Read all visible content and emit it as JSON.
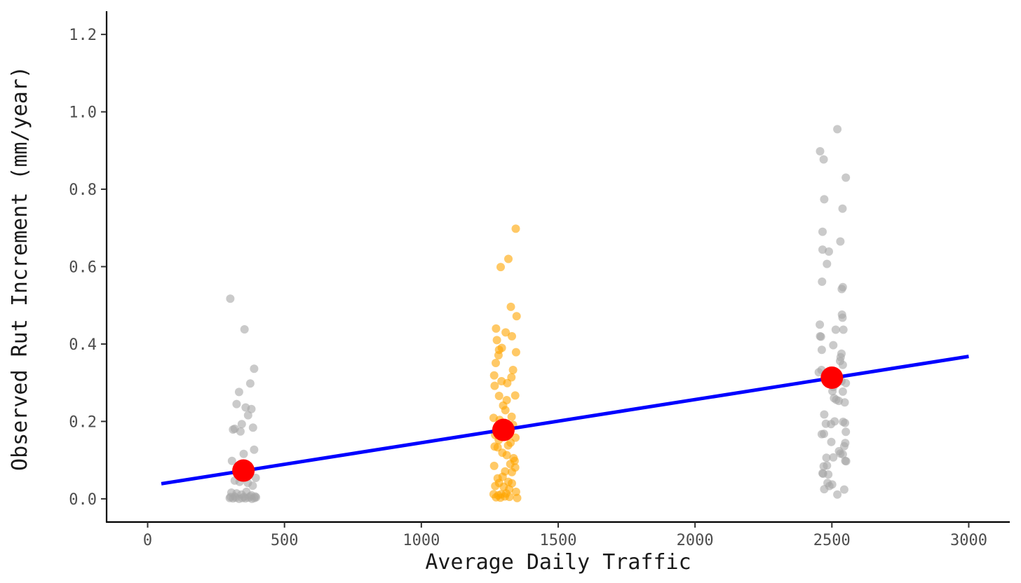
{
  "chart_data": {
    "type": "scatter",
    "xlabel": "Average Daily Traffic",
    "ylabel": "Observed Rut Increment (mm/year)",
    "xlim": [
      -150,
      3150
    ],
    "ylim": [
      -0.06,
      1.26
    ],
    "x_ticks": [
      0,
      500,
      1000,
      1500,
      2000,
      2500,
      3000
    ],
    "x_tick_labels": [
      "0",
      "500",
      "1000",
      "1500",
      "2000",
      "2500",
      "3000"
    ],
    "y_ticks": [
      0.0,
      0.2,
      0.4,
      0.6,
      0.8,
      1.0,
      1.2
    ],
    "y_tick_labels": [
      "0.0",
      "0.2",
      "0.4",
      "0.6",
      "0.8",
      "1.0",
      "1.2"
    ],
    "grid": false,
    "colors": {
      "gray_points": "#a6a6a6",
      "orange_points": "#ffa500",
      "fit_line": "#0000ff",
      "means": "#ff0000"
    },
    "series": [
      {
        "color": "#a6a6a6",
        "points": [
          [
            302,
            0.517
          ],
          [
            354,
            0.438
          ],
          [
            389,
            0.336
          ],
          [
            375,
            0.298
          ],
          [
            334,
            0.276
          ],
          [
            379,
            0.232
          ],
          [
            358,
            0.236
          ],
          [
            325,
            0.245
          ],
          [
            367,
            0.216
          ],
          [
            344,
            0.193
          ],
          [
            318,
            0.181
          ],
          [
            312,
            0.179
          ],
          [
            385,
            0.184
          ],
          [
            339,
            0.174
          ],
          [
            389,
            0.127
          ],
          [
            351,
            0.116
          ],
          [
            308,
            0.098
          ],
          [
            328,
            0.08
          ],
          [
            372,
            0.07
          ],
          [
            395,
            0.054
          ],
          [
            318,
            0.047
          ],
          [
            336,
            0.044
          ],
          [
            366,
            0.041
          ],
          [
            384,
            0.034
          ],
          [
            306,
            0.016
          ],
          [
            325,
            0.014
          ],
          [
            343,
            0.011
          ],
          [
            361,
            0.018
          ],
          [
            379,
            0.009
          ],
          [
            393,
            0.006
          ],
          [
            300,
            0.002
          ],
          [
            312,
            0.001
          ],
          [
            322,
            0.003
          ],
          [
            334,
            0.0
          ],
          [
            346,
            0.002
          ],
          [
            357,
            0.001
          ],
          [
            369,
            0.003
          ],
          [
            381,
            0.0
          ],
          [
            390,
            0.002
          ],
          [
            396,
            0.004
          ],
          [
            303,
            0.005
          ],
          [
            318,
            0.006
          ],
          [
            352,
            0.005
          ],
          [
            374,
            0.006
          ]
        ]
      },
      {
        "color": "#ffa500",
        "points": [
          [
            1345,
            0.698
          ],
          [
            1318,
            0.62
          ],
          [
            1290,
            0.599
          ],
          [
            1327,
            0.496
          ],
          [
            1348,
            0.472
          ],
          [
            1273,
            0.44
          ],
          [
            1308,
            0.43
          ],
          [
            1331,
            0.42
          ],
          [
            1276,
            0.41
          ],
          [
            1294,
            0.39
          ],
          [
            1284,
            0.385
          ],
          [
            1346,
            0.379
          ],
          [
            1282,
            0.371
          ],
          [
            1272,
            0.351
          ],
          [
            1335,
            0.333
          ],
          [
            1266,
            0.319
          ],
          [
            1329,
            0.314
          ],
          [
            1293,
            0.304
          ],
          [
            1314,
            0.299
          ],
          [
            1268,
            0.292
          ],
          [
            1284,
            0.266
          ],
          [
            1343,
            0.267
          ],
          [
            1312,
            0.255
          ],
          [
            1299,
            0.241
          ],
          [
            1307,
            0.229
          ],
          [
            1330,
            0.212
          ],
          [
            1264,
            0.209
          ],
          [
            1286,
            0.204
          ],
          [
            1335,
            0.191
          ],
          [
            1289,
            0.188
          ],
          [
            1270,
            0.165
          ],
          [
            1344,
            0.158
          ],
          [
            1283,
            0.152
          ],
          [
            1326,
            0.145
          ],
          [
            1317,
            0.138
          ],
          [
            1268,
            0.135
          ],
          [
            1279,
            0.133
          ],
          [
            1296,
            0.119
          ],
          [
            1312,
            0.113
          ],
          [
            1337,
            0.105
          ],
          [
            1341,
            0.098
          ],
          [
            1325,
            0.09
          ],
          [
            1266,
            0.085
          ],
          [
            1343,
            0.081
          ],
          [
            1306,
            0.071
          ],
          [
            1331,
            0.069
          ],
          [
            1279,
            0.053
          ],
          [
            1297,
            0.057
          ],
          [
            1318,
            0.044
          ],
          [
            1284,
            0.041
          ],
          [
            1331,
            0.04
          ],
          [
            1270,
            0.033
          ],
          [
            1301,
            0.031
          ],
          [
            1321,
            0.025
          ],
          [
            1346,
            0.018
          ],
          [
            1264,
            0.012
          ],
          [
            1281,
            0.009
          ],
          [
            1292,
            0.012
          ],
          [
            1310,
            0.014
          ],
          [
            1273,
            0.004
          ],
          [
            1289,
            0.003
          ],
          [
            1305,
            0.006
          ],
          [
            1322,
            0.005
          ],
          [
            1350,
            0.002
          ]
        ]
      },
      {
        "color": "#a6a6a6",
        "points": [
          [
            2520,
            0.955
          ],
          [
            2457,
            0.898
          ],
          [
            2470,
            0.877
          ],
          [
            2551,
            0.83
          ],
          [
            2472,
            0.774
          ],
          [
            2539,
            0.75
          ],
          [
            2466,
            0.69
          ],
          [
            2531,
            0.665
          ],
          [
            2466,
            0.644
          ],
          [
            2489,
            0.639
          ],
          [
            2482,
            0.607
          ],
          [
            2464,
            0.561
          ],
          [
            2540,
            0.547
          ],
          [
            2536,
            0.542
          ],
          [
            2537,
            0.476
          ],
          [
            2539,
            0.468
          ],
          [
            2456,
            0.45
          ],
          [
            2514,
            0.437
          ],
          [
            2542,
            0.437
          ],
          [
            2457,
            0.42
          ],
          [
            2460,
            0.419
          ],
          [
            2505,
            0.397
          ],
          [
            2463,
            0.385
          ],
          [
            2535,
            0.375
          ],
          [
            2532,
            0.366
          ],
          [
            2530,
            0.356
          ],
          [
            2540,
            0.346
          ],
          [
            2462,
            0.333
          ],
          [
            2452,
            0.327
          ],
          [
            2495,
            0.321
          ],
          [
            2525,
            0.312
          ],
          [
            2535,
            0.304
          ],
          [
            2551,
            0.299
          ],
          [
            2505,
            0.289
          ],
          [
            2502,
            0.278
          ],
          [
            2540,
            0.277
          ],
          [
            2508,
            0.26
          ],
          [
            2516,
            0.256
          ],
          [
            2525,
            0.253
          ],
          [
            2547,
            0.249
          ],
          [
            2472,
            0.218
          ],
          [
            2510,
            0.2
          ],
          [
            2541,
            0.199
          ],
          [
            2548,
            0.196
          ],
          [
            2478,
            0.194
          ],
          [
            2497,
            0.193
          ],
          [
            2551,
            0.173
          ],
          [
            2471,
            0.168
          ],
          [
            2463,
            0.167
          ],
          [
            2498,
            0.147
          ],
          [
            2549,
            0.144
          ],
          [
            2545,
            0.136
          ],
          [
            2526,
            0.123
          ],
          [
            2531,
            0.117
          ],
          [
            2540,
            0.115
          ],
          [
            2505,
            0.107
          ],
          [
            2480,
            0.106
          ],
          [
            2549,
            0.098
          ],
          [
            2552,
            0.097
          ],
          [
            2482,
            0.086
          ],
          [
            2470,
            0.084
          ],
          [
            2466,
            0.066
          ],
          [
            2468,
            0.065
          ],
          [
            2487,
            0.063
          ],
          [
            2484,
            0.041
          ],
          [
            2501,
            0.037
          ],
          [
            2491,
            0.033
          ],
          [
            2472,
            0.025
          ],
          [
            2545,
            0.024
          ],
          [
            2520,
            0.011
          ]
        ]
      }
    ],
    "fit_line": {
      "color": "#0000ff",
      "x": [
        50,
        3000
      ],
      "y": [
        0.039,
        0.368
      ]
    },
    "means": {
      "color": "#ff0000",
      "points": [
        [
          350,
          0.073
        ],
        [
          1300,
          0.178
        ],
        [
          2500,
          0.313
        ]
      ]
    }
  }
}
